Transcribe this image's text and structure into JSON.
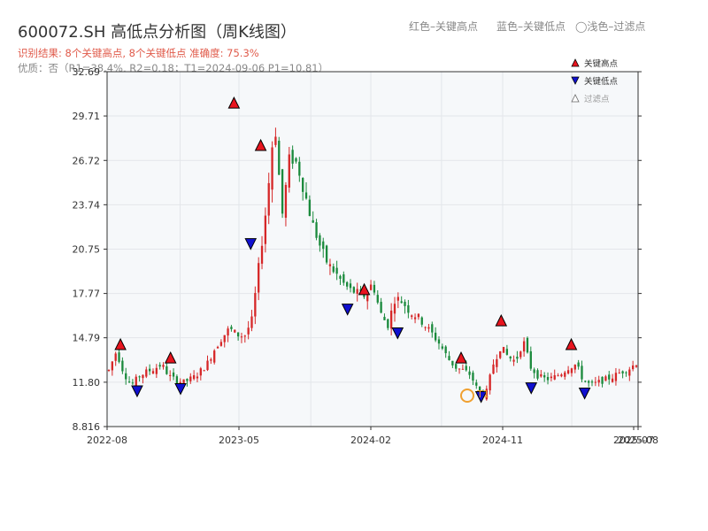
{
  "header": {
    "title": "600072.SH 高低点分析图（周K线图）",
    "subtitle_result": "识别结果: 8个关键高点, 8个关键低点   准确度: 75.3%",
    "subtitle_quality": "优质：否（R1=38.4%, R2=0.18；T1=2024-09-06 P1=10.81）"
  },
  "top_legend": {
    "red": "红色–关键高点",
    "blue": "蓝色–关键低点",
    "faded": "◯浅色–过滤点"
  },
  "colors": {
    "up": "#d62728",
    "down": "#1a8a3c",
    "high_marker": "#e8141e",
    "low_marker": "#1010d0",
    "t1_ring": "#f0a030",
    "plot_bg": "#f6f8fa",
    "grid": "#e3e6ea"
  },
  "chart_data": {
    "type": "candlestick",
    "ylim": [
      8.816,
      32.69
    ],
    "y_ticks": [
      "8.816",
      "11.80",
      "14.79",
      "17.77",
      "20.75",
      "23.74",
      "26.72",
      "29.71",
      "32.69"
    ],
    "x_tick_labels": [
      "2022-08",
      "2023-05",
      "2024-02",
      "2024-11",
      "2025-07",
      "2025-08"
    ],
    "legend": [
      {
        "label": "关键高点",
        "marker": "up-red"
      },
      {
        "label": "关键低点",
        "marker": "down-blue"
      },
      {
        "label": "过滤点",
        "marker": "up-faded"
      }
    ],
    "annotation": {
      "label": "T1",
      "date": "2024-09-06",
      "price": 10.81
    },
    "close_path": [
      [
        0,
        12.6
      ],
      [
        2,
        13.9
      ],
      [
        4,
        12.4
      ],
      [
        6,
        11.6
      ],
      [
        8,
        12.2
      ],
      [
        10,
        12.5
      ],
      [
        12,
        12.7
      ],
      [
        14,
        13.0
      ],
      [
        16,
        12.2
      ],
      [
        18,
        11.9
      ],
      [
        20,
        11.8
      ],
      [
        23,
        12.2
      ],
      [
        26,
        13.0
      ],
      [
        28,
        14.0
      ],
      [
        30,
        14.8
      ],
      [
        32,
        15.4
      ],
      [
        34,
        15.0
      ],
      [
        36,
        14.9
      ],
      [
        38,
        16.0
      ],
      [
        40,
        20.0
      ],
      [
        42,
        24.0
      ],
      [
        44,
        29.5
      ],
      [
        46,
        23.0
      ],
      [
        48,
        27.0
      ],
      [
        50,
        26.5
      ],
      [
        52,
        24.5
      ],
      [
        54,
        22.5
      ],
      [
        56,
        21.0
      ],
      [
        58,
        19.8
      ],
      [
        60,
        19.2
      ],
      [
        62,
        18.5
      ],
      [
        64,
        18.0
      ],
      [
        66,
        17.8
      ],
      [
        68,
        17.6
      ],
      [
        70,
        18.5
      ],
      [
        72,
        16.5
      ],
      [
        74,
        15.6
      ],
      [
        76,
        17.5
      ],
      [
        78,
        17.2
      ],
      [
        80,
        16.5
      ],
      [
        82,
        16.2
      ],
      [
        84,
        15.6
      ],
      [
        86,
        15.0
      ],
      [
        88,
        14.3
      ],
      [
        90,
        13.4
      ],
      [
        92,
        12.8
      ],
      [
        94,
        12.6
      ],
      [
        96,
        12.3
      ],
      [
        98,
        11.2
      ],
      [
        100,
        10.9
      ],
      [
        102,
        13.0
      ],
      [
        104,
        14.2
      ],
      [
        106,
        13.5
      ],
      [
        108,
        13.2
      ],
      [
        110,
        14.6
      ],
      [
        112,
        12.8
      ],
      [
        114,
        12.2
      ],
      [
        116,
        12.0
      ],
      [
        118,
        12.1
      ],
      [
        120,
        12.4
      ],
      [
        122,
        12.8
      ],
      [
        124,
        13.0
      ],
      [
        126,
        11.9
      ],
      [
        128,
        11.6
      ],
      [
        130,
        11.8
      ],
      [
        132,
        12.0
      ],
      [
        134,
        12.2
      ],
      [
        136,
        12.5
      ],
      [
        138,
        12.7
      ],
      [
        140,
        13.1
      ]
    ],
    "key_highs": [
      {
        "label": "H1",
        "date": "2022-08-12",
        "price": 14.35
      },
      {
        "label": "H2",
        "date": "2022-11-25",
        "price": 13.45
      },
      {
        "label": "H3",
        "date": "2023-04-07",
        "price": 30.6
      },
      {
        "label": "H4",
        "date": "2023-06-02",
        "price": 27.75
      },
      {
        "label": "H5",
        "date": "2024-01-05",
        "price": 18.05
      },
      {
        "label": "H6",
        "date": "2024-07-26",
        "price": 13.45
      },
      {
        "label": "H7",
        "date": "2024-10-18",
        "price": 15.95
      },
      {
        "label": "H8",
        "date": "2025-03-14",
        "price": 14.35
      }
    ],
    "key_lows": [
      {
        "label": "L1",
        "date": "2022-09-16",
        "price": 11.2
      },
      {
        "label": "L2",
        "date": "2022-12-16",
        "price": 11.35
      },
      {
        "label": "L3",
        "date": "2023-05-12",
        "price": 21.1
      },
      {
        "label": "L4",
        "date": "2023-12-01",
        "price": 16.7
      },
      {
        "label": "L5",
        "date": "2024-03-15",
        "price": 15.1
      },
      {
        "label": "L6",
        "date": "2024-09-06",
        "price": 10.81
      },
      {
        "label": "L7",
        "date": "2024-12-20",
        "price": 11.4
      },
      {
        "label": "L8",
        "date": "2025-04-11",
        "price": 11.05
      }
    ]
  }
}
